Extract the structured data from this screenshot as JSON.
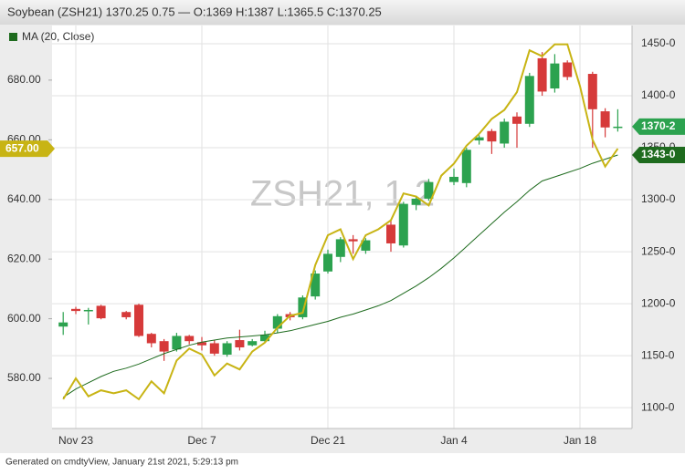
{
  "chart_data": {
    "type": "candlestick",
    "title": "Soybean (ZSH21) 1370.25 0.75 — O:1369 H:1387 L:1365.5 C:1370.25",
    "watermark": "ZSH21, 1 2",
    "footer": "Generated on cmdtyView, January 21st 2021, 5:29:13 pm",
    "categories": [
      null,
      "Nov 23",
      null,
      null,
      null,
      null,
      null,
      null,
      null,
      null,
      null,
      "Dec 7",
      null,
      null,
      null,
      null,
      null,
      null,
      null,
      null,
      null,
      "Dec 21",
      null,
      null,
      null,
      null,
      null,
      null,
      null,
      null,
      null,
      "Jan 4",
      null,
      null,
      null,
      null,
      null,
      null,
      null,
      null,
      null,
      "Jan 18",
      null,
      null,
      null
    ],
    "ohlc": {
      "open": [
        1178,
        1195,
        1193,
        1198,
        null,
        1192,
        1199,
        1171,
        1164,
        1156,
        1169,
        1163,
        1162,
        1151,
        1165,
        1160,
        1164,
        1176,
        1190,
        1187,
        1207,
        1231,
        1245,
        1262,
        1251,
        null,
        1276,
        1256,
        1295,
        1301,
        null,
        1317,
        1316,
        1357,
        1366,
        1354,
        1380,
        1373,
        1436,
        1407,
        1432,
        null,
        1421,
        1385,
        1369
      ],
      "high": [
        1192,
        1197,
        1196,
        1199,
        null,
        1193,
        1200,
        1172,
        1166,
        1172,
        1170,
        1168,
        1165,
        1164,
        1175,
        1166,
        1174,
        1190,
        1192,
        1208,
        1232,
        1252,
        1264,
        1266,
        1263,
        null,
        1280,
        1298,
        1304,
        1320,
        null,
        1330,
        1350,
        1362,
        1368,
        1378,
        1384,
        1422,
        1442,
        1440,
        1434,
        null,
        1423,
        1388,
        1387
      ],
      "low": [
        1170,
        1190,
        1180,
        1185,
        null,
        1185,
        1168,
        1158,
        1145,
        1154,
        1161,
        1155,
        1150,
        1149,
        1155,
        1159,
        1163,
        1172,
        1184,
        1185,
        1204,
        1229,
        1240,
        1248,
        1248,
        null,
        1250,
        1254,
        1290,
        1299,
        null,
        1314,
        1312,
        1353,
        1344,
        1350,
        1350,
        1370,
        1400,
        1403,
        1415,
        null,
        1350,
        1360,
        1365.5
      ],
      "close": [
        1182,
        1193,
        1194,
        1186,
        null,
        1187,
        1169,
        1162,
        1154,
        1169,
        1164,
        1160,
        1152,
        1162,
        1158,
        1164,
        1170,
        1188,
        1187,
        1206,
        1229,
        1248,
        1262,
        1260,
        1261,
        null,
        1258,
        1296,
        1301,
        1317,
        null,
        1322,
        1348,
        1360,
        1356,
        1375,
        1373,
        1419,
        1404,
        1431,
        1418,
        null,
        1387,
        1369.5,
        1370.25
      ],
      "axis": "y2",
      "up_color": "#2ca24f",
      "down_color": "#d63a3a",
      "last_label": {
        "value": 1370.25,
        "label": "1370-2"
      }
    },
    "series": [
      {
        "name": "MA (20, Close)",
        "color": "#1e6b1e",
        "axis": "y2",
        "values": [
          1110,
          1118,
          1124,
          1130,
          1135,
          1138,
          1142,
          1147,
          1152,
          1156,
          1160,
          1163,
          1165,
          1167,
          1168,
          1169,
          1170,
          1172,
          1174,
          1177,
          1180,
          1183,
          1187,
          1190,
          1194,
          1198,
          1203,
          1210,
          1217,
          1225,
          1234,
          1244,
          1255,
          1266,
          1277,
          1288,
          1298,
          1309,
          1318,
          1322,
          1326,
          1330,
          1335,
          1339,
          1343
        ],
        "last_label": {
          "value": 1343,
          "label": "1343-0"
        },
        "label_color": "#1e6b1e"
      },
      {
        "color": "#c8b414",
        "axis": "y",
        "values": [
          573,
          580,
          574,
          576,
          575,
          576,
          573,
          579,
          575,
          586,
          590,
          588,
          581,
          585,
          583,
          589,
          592,
          597,
          601,
          602,
          618,
          628,
          630,
          620,
          628,
          630,
          633,
          642,
          641,
          638,
          648,
          652,
          658,
          662,
          667,
          670,
          676,
          690,
          688,
          692,
          692,
          678,
          660,
          651,
          657
        ],
        "last_label": {
          "value": 657,
          "label": "657.00"
        },
        "label_color": "#c8b414"
      }
    ],
    "ylim": [
      563.2,
      698.3
    ],
    "yticks": [
      {
        "value": 580,
        "label": "580.00"
      },
      {
        "value": 600,
        "label": "600.00"
      },
      {
        "value": 620,
        "label": "620.00"
      },
      {
        "value": 640,
        "label": "640.00"
      },
      {
        "value": 660,
        "label": "660.00"
      },
      {
        "value": 680,
        "label": "680.00"
      }
    ],
    "y2lim": [
      1080,
      1467.5
    ],
    "y2ticks": [
      {
        "value": 1100,
        "label": "1100-0"
      },
      {
        "value": 1150,
        "label": "1150-0"
      },
      {
        "value": 1200,
        "label": "1200-0"
      },
      {
        "value": 1250,
        "label": "1250-0"
      },
      {
        "value": 1300,
        "label": "1300-0"
      },
      {
        "value": 1350,
        "label": "1350-0"
      },
      {
        "value": 1400,
        "label": "1400-0"
      },
      {
        "value": 1450,
        "label": "1450-0"
      }
    ],
    "grid": true
  }
}
